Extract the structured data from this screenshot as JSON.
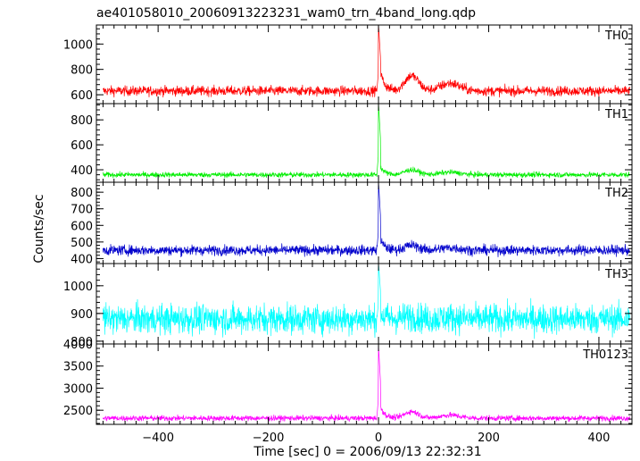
{
  "title": "ae401058010_20060913223231_wam0_trn_4band_long.qdp",
  "chart_data": {
    "type": "line",
    "title": "ae401058010_20060913223231_wam0_trn_4band_long.qdp",
    "xlabel": "Time [sec] 0 = 2006/09/13 22:32:31",
    "ylabel": "Counts/sec",
    "xlim": [
      -512,
      460
    ],
    "x_ticks": [
      -400,
      -200,
      0,
      200,
      400
    ],
    "x_tick_labels": [
      "−400",
      "−200",
      "0",
      "200",
      "400"
    ],
    "grid": false,
    "series": [
      {
        "name": "TH0",
        "color": "#ff0000",
        "ylim": [
          530,
          1150
        ],
        "y_ticks": [
          600,
          800,
          1000
        ],
        "y_tick_labels": [
          "600",
          "800",
          "1000"
        ],
        "baseline": 630,
        "noise": 28,
        "peak": 1150,
        "post_burst": [
          [
            0,
            140
          ],
          [
            60,
            120
          ],
          [
            130,
            60
          ]
        ]
      },
      {
        "name": "TH1",
        "color": "#00ee00",
        "ylim": [
          300,
          930
        ],
        "y_ticks": [
          400,
          600,
          800
        ],
        "y_tick_labels": [
          "400",
          "600",
          "800"
        ],
        "baseline": 360,
        "noise": 15,
        "peak": 930,
        "post_burst": [
          [
            0,
            60
          ],
          [
            60,
            40
          ],
          [
            130,
            20
          ]
        ]
      },
      {
        "name": "TH2",
        "color": "#0000cc",
        "ylim": [
          370,
          860
        ],
        "y_ticks": [
          400,
          500,
          600,
          700,
          800
        ],
        "y_tick_labels": [
          "400",
          "500",
          "600",
          "700",
          "800"
        ],
        "baseline": 450,
        "noise": 22,
        "peak": 860,
        "post_burst": [
          [
            0,
            60
          ],
          [
            60,
            30
          ],
          [
            130,
            15
          ]
        ]
      },
      {
        "name": "TH3",
        "color": "#00ffff",
        "ylim": [
          790,
          1080
        ],
        "y_ticks": [
          800,
          900,
          1000
        ],
        "y_tick_labels": [
          "800",
          "900",
          "1000"
        ],
        "baseline": 880,
        "noise": 38,
        "peak": 1080,
        "post_burst": [
          [
            0,
            20
          ],
          [
            60,
            10
          ],
          [
            130,
            5
          ]
        ]
      },
      {
        "name": "TH0123",
        "color": "#ff00ff",
        "ylim": [
          2180,
          4000
        ],
        "y_ticks": [
          2500,
          3000,
          3500,
          4000
        ],
        "y_tick_labels": [
          "2500",
          "3000",
          "3500",
          "4000"
        ],
        "baseline": 2320,
        "noise": 45,
        "peak": 3950,
        "post_burst": [
          [
            0,
            250
          ],
          [
            60,
            150
          ],
          [
            130,
            70
          ]
        ]
      }
    ]
  }
}
